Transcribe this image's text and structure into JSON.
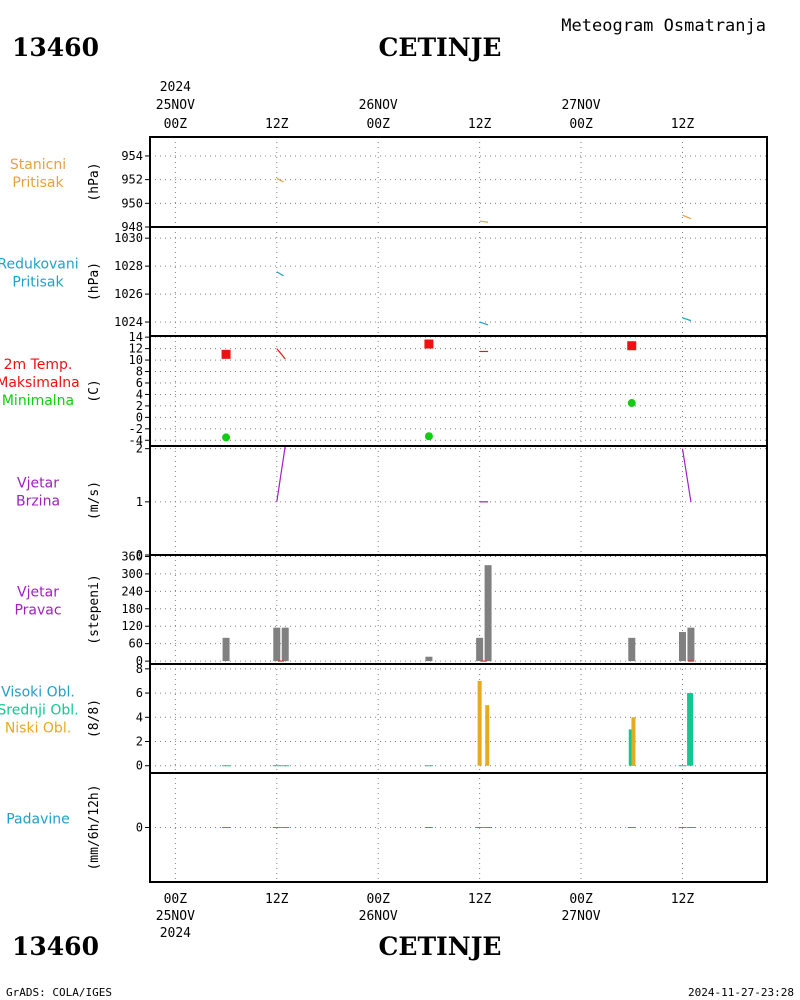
{
  "header": {
    "station_id": "13460",
    "station_name": "CETINJE",
    "title": "Meteogram Osmatranja"
  },
  "footer": {
    "left": "GrADS: COLA/IGES",
    "right": "2024-11-27-23:28"
  },
  "time_axis": {
    "ticks": [
      {
        "hour": 0,
        "label": "00Z",
        "date": "25NOV",
        "year": "2024"
      },
      {
        "hour": 12,
        "label": "12Z"
      },
      {
        "hour": 24,
        "label": "00Z",
        "date": "26NOV"
      },
      {
        "hour": 36,
        "label": "12Z"
      },
      {
        "hour": 48,
        "label": "00Z",
        "date": "27NOV"
      },
      {
        "hour": 60,
        "label": "12Z"
      }
    ],
    "range_hours": [
      -3,
      70
    ]
  },
  "colors": {
    "station_pressure": "#e8a040",
    "reduced_pressure": "#20a0c8",
    "temp_max": "#ee1111",
    "temp_min": "#11cc11",
    "wind": "#a020c0",
    "wind_dir_bar": "#808080",
    "cloud_high": "#20a0e0",
    "cloud_mid": "#10c890",
    "cloud_low": "#e8a820",
    "precip": "#20a0c8"
  },
  "chart_data": [
    {
      "type": "line",
      "panel": "station_pressure",
      "labels": [
        "Stanicni",
        "Pritisak"
      ],
      "label_color": "#e8a040",
      "unit": "(hPa)",
      "ylim": [
        948,
        955.6
      ],
      "yticks": [
        948,
        950,
        952,
        954
      ],
      "series": [
        {
          "color": "#e8a040",
          "segments": [
            [
              [
                12,
                952.1
              ],
              [
                12.8,
                951.8
              ]
            ],
            [
              [
                36,
                948.5
              ],
              [
                37,
                948.4
              ]
            ],
            [
              [
                60,
                949.0
              ],
              [
                61,
                948.7
              ]
            ]
          ]
        }
      ]
    },
    {
      "type": "line",
      "panel": "reduced_pressure",
      "labels": [
        "Redukovani",
        "Pritisak"
      ],
      "label_color": "#20a0c8",
      "unit": "(hPa)",
      "ylim": [
        1023,
        1030.8
      ],
      "yticks": [
        1024,
        1026,
        1028,
        1030
      ],
      "series": [
        {
          "color": "#20a0c8",
          "segments": [
            [
              [
                12,
                1027.6
              ],
              [
                12.8,
                1027.3
              ]
            ],
            [
              [
                36,
                1024.0
              ],
              [
                37,
                1023.8
              ]
            ],
            [
              [
                60,
                1024.3
              ],
              [
                61,
                1024.1
              ]
            ]
          ]
        }
      ]
    },
    {
      "type": "line",
      "panel": "temperature",
      "labels": [
        "2m Temp.",
        "Maksimalna",
        "Minimalna"
      ],
      "label_colors": [
        "#ee1111",
        "#ee1111",
        "#11cc11"
      ],
      "unit": "(C)",
      "ylim": [
        -5,
        14.2
      ],
      "yticks": [
        -4,
        -2,
        0,
        2,
        4,
        6,
        8,
        10,
        12,
        14
      ],
      "series": [
        {
          "color": "#ee1111",
          "segments": [
            [
              [
                12,
                12.0
              ],
              [
                13,
                10.2
              ]
            ],
            [
              [
                36,
                11.5
              ],
              [
                37,
                11.5
              ]
            ]
          ]
        }
      ],
      "max_markers": [
        [
          6,
          11.0
        ],
        [
          30,
          12.8
        ],
        [
          54,
          12.5
        ]
      ],
      "min_markers": [
        [
          6,
          -3.5
        ],
        [
          30,
          -3.3
        ],
        [
          54,
          2.5
        ]
      ]
    },
    {
      "type": "line",
      "panel": "wind_speed",
      "labels": [
        "Vjetar",
        "Brzina"
      ],
      "label_color": "#a020c0",
      "unit": "(m/s)",
      "ylim": [
        0,
        2.05
      ],
      "yticks": [
        0,
        1,
        2
      ],
      "series": [
        {
          "color": "#a020c0",
          "segments": [
            [
              [
                12,
                1.0
              ],
              [
                13,
                2.05
              ]
            ],
            [
              [
                36,
                1.0
              ],
              [
                37,
                1.0
              ]
            ],
            [
              [
                60,
                2.0
              ],
              [
                61,
                1.0
              ]
            ]
          ]
        }
      ]
    },
    {
      "type": "bar",
      "panel": "wind_direction",
      "labels": [
        "Vjetar",
        "Pravac"
      ],
      "label_color": "#a020c0",
      "unit": "(stepeni)",
      "ylim": [
        -10,
        365
      ],
      "yticks": [
        0,
        60,
        120,
        180,
        240,
        300,
        360
      ],
      "bars": [
        {
          "x": 6,
          "v": 80
        },
        {
          "x": 12,
          "v": 115
        },
        {
          "x": 13,
          "v": 115
        },
        {
          "x": 30,
          "v": 15
        },
        {
          "x": 36,
          "v": 80
        },
        {
          "x": 37,
          "v": 330
        },
        {
          "x": 54,
          "v": 80
        },
        {
          "x": 60,
          "v": 100
        },
        {
          "x": 61,
          "v": 115
        }
      ],
      "ticks_red": [
        12.5,
        36.5,
        61
      ]
    },
    {
      "type": "bar",
      "panel": "cloud_cover",
      "labels": [
        "Visoki Obl.",
        "Srednji Obl.",
        "Niski Obl."
      ],
      "label_colors": [
        "#20a0c8",
        "#10c890",
        "#e8a820"
      ],
      "unit": "(8/8)",
      "ylim": [
        -0.6,
        8.4
      ],
      "yticks": [
        0,
        2,
        4,
        6,
        8
      ],
      "bars": [
        {
          "x": 36,
          "v": 7,
          "kind": "low"
        },
        {
          "x": 36.9,
          "v": 5,
          "kind": "low"
        },
        {
          "x": 54,
          "v": 3,
          "kind": "mid"
        },
        {
          "x": 54.2,
          "v": 4,
          "kind": "low"
        },
        {
          "x": 60.9,
          "v": 6,
          "kind": "mid"
        }
      ],
      "zero_marks": [
        6,
        12,
        13,
        30,
        60
      ]
    },
    {
      "type": "line",
      "panel": "precipitation",
      "labels": [
        "Padavine"
      ],
      "label_color": "#20a0c8",
      "unit": "(mm/6h/12h)",
      "ylim": [
        -1,
        1
      ],
      "yticks": [
        0
      ],
      "zero_marks": [
        6,
        12,
        13,
        30,
        36,
        37,
        54,
        60,
        61
      ]
    }
  ]
}
